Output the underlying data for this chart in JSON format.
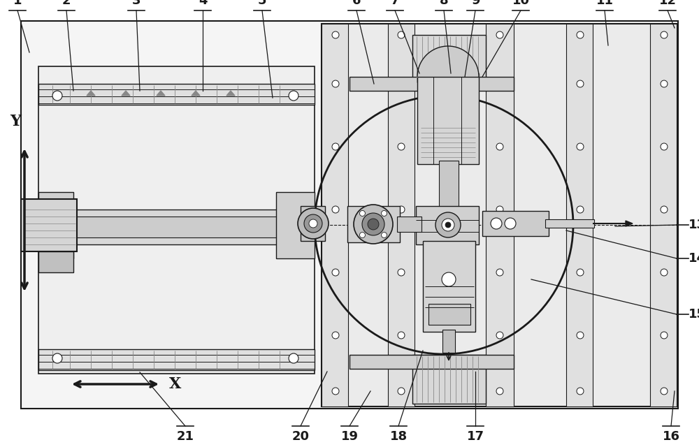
{
  "bg": "#ffffff",
  "lc": "#1a1a1a",
  "gc": "#888888",
  "fc_light": "#e8e8e8",
  "fc_mid": "#d0d0d0",
  "fc_dark": "#b0b0b0",
  "fc_white": "#ffffff",
  "figw": 10.0,
  "figh": 6.4,
  "dpi": 100
}
